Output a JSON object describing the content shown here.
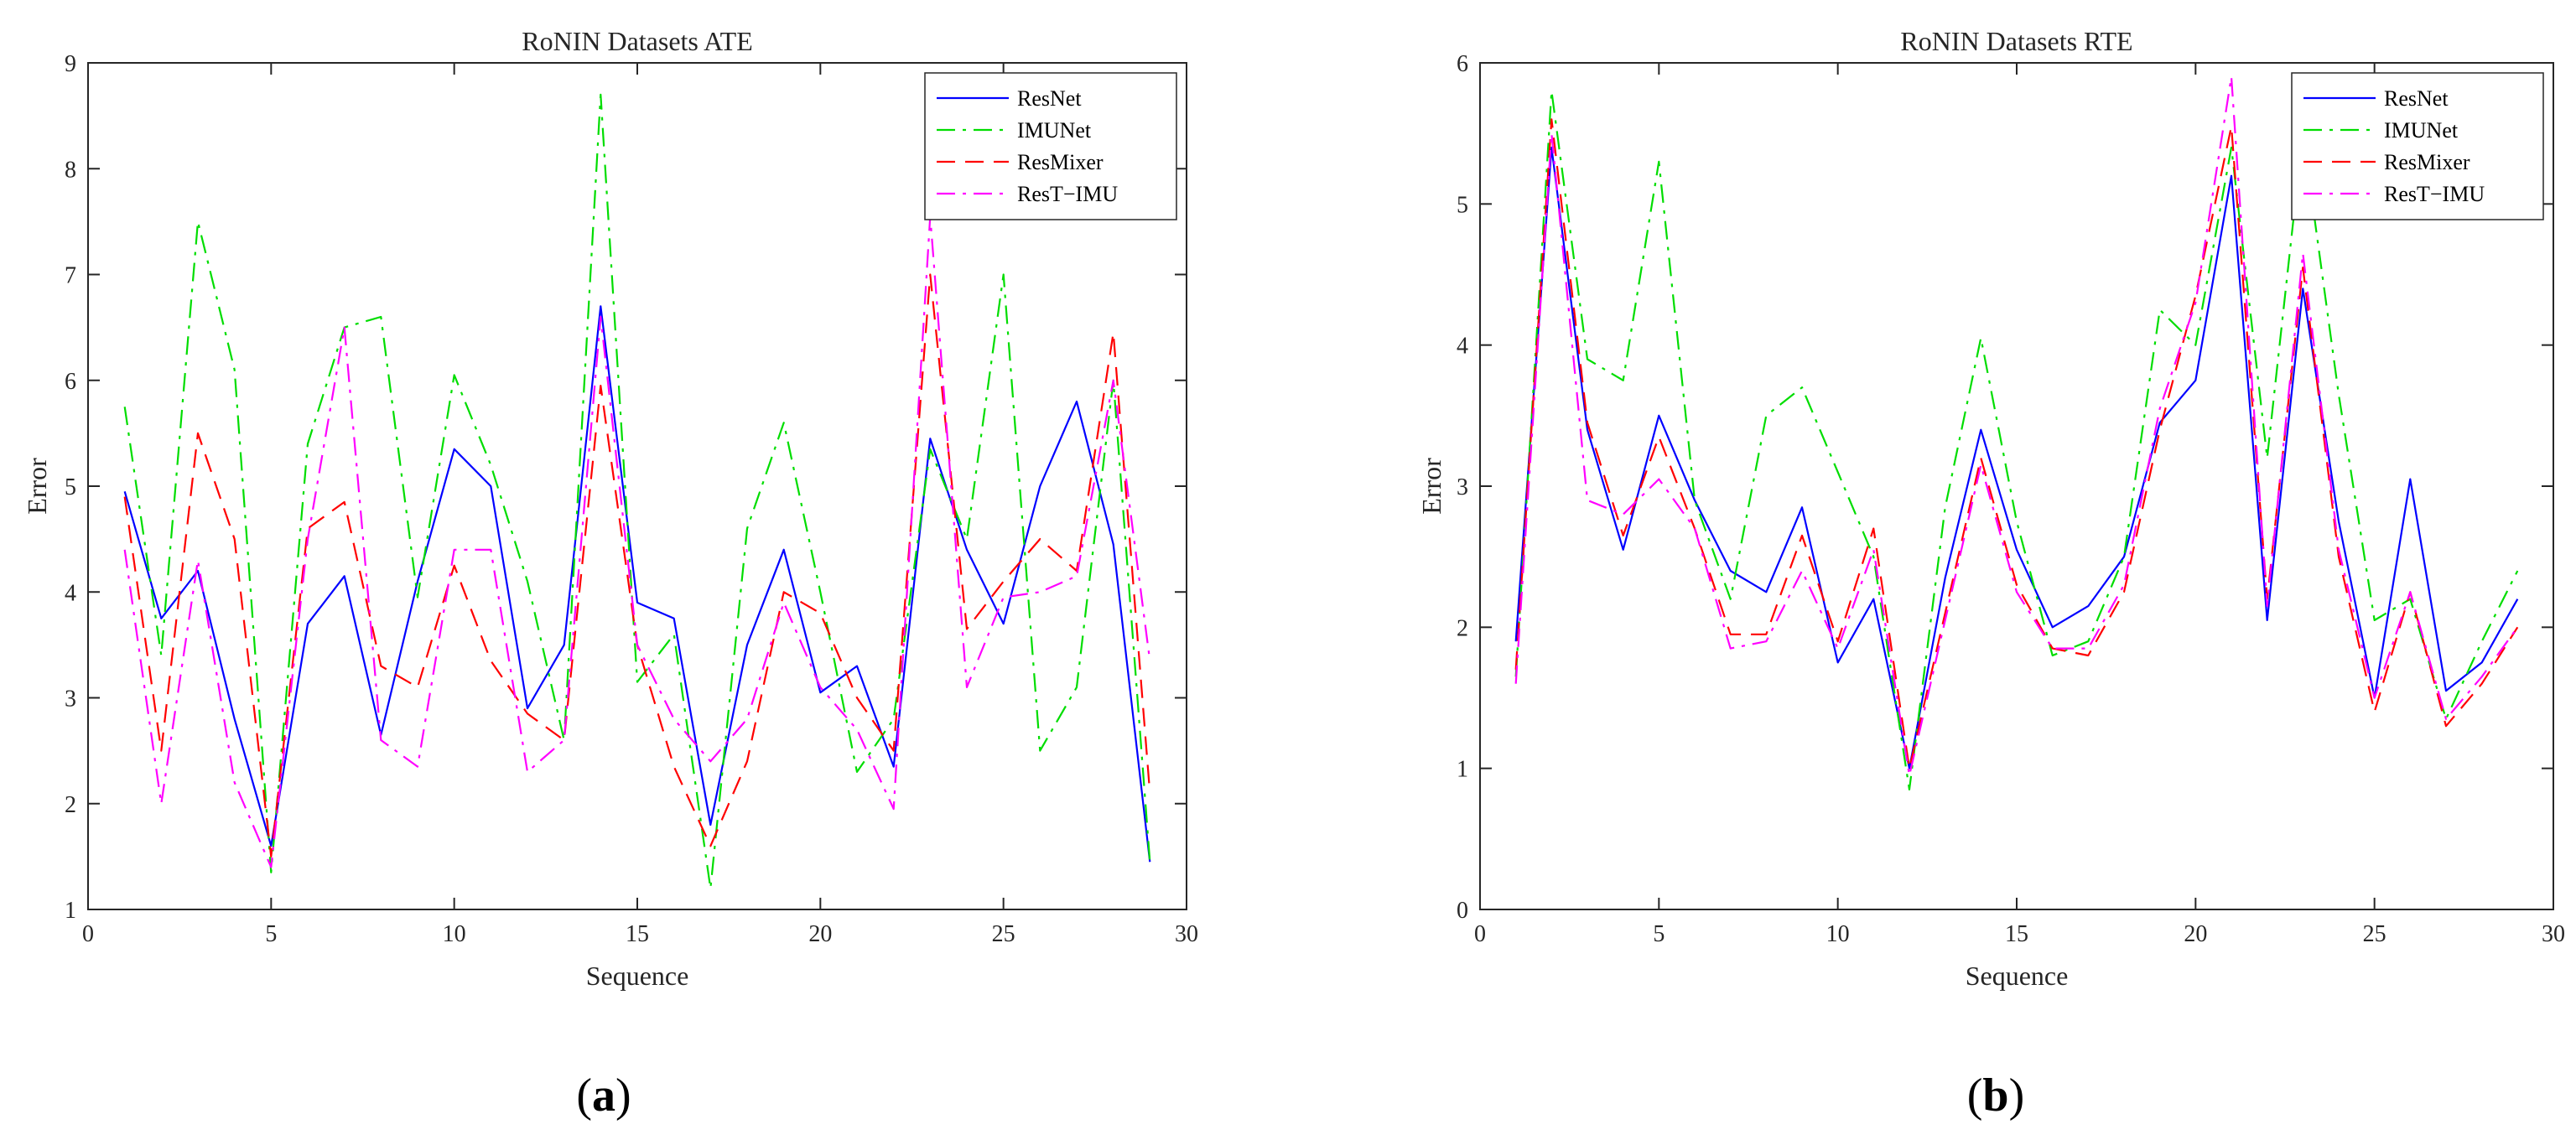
{
  "panels": [
    {
      "label_open": "(",
      "label_letter": "a",
      "label_close": ")"
    },
    {
      "label_open": "(",
      "label_letter": "b",
      "label_close": ")"
    }
  ],
  "chart_data": [
    {
      "type": "line",
      "title": "RoNIN Datasets ATE",
      "xlabel": "Sequence",
      "ylabel": "Error",
      "xlim": [
        0,
        30
      ],
      "ylim": [
        1,
        9
      ],
      "xticks": [
        0,
        5,
        10,
        15,
        20,
        25,
        30
      ],
      "yticks": [
        1,
        2,
        3,
        4,
        5,
        6,
        7,
        8,
        9
      ],
      "legend_position": "top-right",
      "grid": false,
      "x": [
        1,
        2,
        3,
        4,
        5,
        6,
        7,
        8,
        9,
        10,
        11,
        12,
        13,
        14,
        15,
        16,
        17,
        18,
        19,
        20,
        21,
        22,
        23,
        24,
        25,
        26,
        27,
        28,
        29
      ],
      "series": [
        {
          "name": "ResNet",
          "color": "#0000ff",
          "dash": "solid",
          "values": [
            4.95,
            3.75,
            4.2,
            2.8,
            1.6,
            3.7,
            4.15,
            2.65,
            4.1,
            5.35,
            5.0,
            2.9,
            3.5,
            6.7,
            3.9,
            3.75,
            1.8,
            3.5,
            4.4,
            3.05,
            3.3,
            2.35,
            5.45,
            4.4,
            3.7,
            5.0,
            5.8,
            4.45,
            1.45
          ]
        },
        {
          "name": "IMUNet",
          "color": "#00dd00",
          "dash": "dashdot",
          "values": [
            5.75,
            3.4,
            7.5,
            6.1,
            1.35,
            5.4,
            6.5,
            6.6,
            3.95,
            6.05,
            5.2,
            4.1,
            2.6,
            8.7,
            3.15,
            3.6,
            1.2,
            4.6,
            5.6,
            4.0,
            2.3,
            2.8,
            5.35,
            4.5,
            7.0,
            2.5,
            3.1,
            6.0,
            1.45
          ]
        },
        {
          "name": "ResMixer",
          "color": "#ff0000",
          "dash": "dashed",
          "values": [
            4.9,
            2.5,
            5.5,
            4.5,
            1.5,
            4.6,
            4.85,
            3.3,
            3.1,
            4.25,
            3.35,
            2.85,
            2.6,
            5.95,
            3.5,
            2.35,
            1.6,
            2.4,
            4.0,
            3.8,
            3.0,
            2.5,
            7.0,
            3.65,
            4.1,
            4.5,
            4.2,
            6.45,
            2.1
          ]
        },
        {
          "name": "ResT−IMU",
          "color": "#ff00ff",
          "dash": "dashdot",
          "values": [
            4.4,
            2.0,
            4.3,
            2.2,
            1.4,
            4.5,
            6.5,
            2.6,
            2.35,
            4.4,
            4.4,
            2.3,
            2.6,
            6.6,
            3.5,
            2.8,
            2.4,
            2.8,
            3.9,
            3.1,
            2.7,
            1.95,
            7.55,
            3.1,
            3.95,
            4.0,
            4.15,
            6.0,
            3.35
          ]
        }
      ]
    },
    {
      "type": "line",
      "title": "RoNIN Datasets RTE",
      "xlabel": "Sequence",
      "ylabel": "Error",
      "xlim": [
        0,
        30
      ],
      "ylim": [
        0,
        6
      ],
      "xticks": [
        0,
        5,
        10,
        15,
        20,
        25,
        30
      ],
      "yticks": [
        0,
        1,
        2,
        3,
        4,
        5,
        6
      ],
      "legend_position": "top-right",
      "grid": false,
      "x": [
        1,
        2,
        3,
        4,
        5,
        6,
        7,
        8,
        9,
        10,
        11,
        12,
        13,
        14,
        15,
        16,
        17,
        18,
        19,
        20,
        21,
        22,
        23,
        24,
        25,
        26,
        27,
        28,
        29
      ],
      "series": [
        {
          "name": "ResNet",
          "color": "#0000ff",
          "dash": "solid",
          "values": [
            1.9,
            5.4,
            3.4,
            2.55,
            3.5,
            2.9,
            2.4,
            2.25,
            2.85,
            1.75,
            2.2,
            1.0,
            2.35,
            3.4,
            2.55,
            2.0,
            2.15,
            2.5,
            3.45,
            3.75,
            5.2,
            2.05,
            4.4,
            2.75,
            1.5,
            3.05,
            1.55,
            1.75,
            2.2
          ]
        },
        {
          "name": "IMUNet",
          "color": "#00dd00",
          "dash": "dashdot",
          "values": [
            1.65,
            5.8,
            3.9,
            3.75,
            5.3,
            2.9,
            2.2,
            3.5,
            3.7,
            3.1,
            2.5,
            0.85,
            2.85,
            4.05,
            2.75,
            1.8,
            1.9,
            2.5,
            4.25,
            4.0,
            5.4,
            3.2,
            5.5,
            3.65,
            2.05,
            2.2,
            1.35,
            1.9,
            2.4
          ]
        },
        {
          "name": "ResMixer",
          "color": "#ff0000",
          "dash": "dashed",
          "values": [
            1.7,
            5.6,
            3.45,
            2.65,
            3.35,
            2.7,
            1.95,
            1.95,
            2.65,
            1.9,
            2.7,
            1.0,
            2.1,
            3.2,
            2.3,
            1.85,
            1.8,
            2.25,
            3.4,
            4.35,
            5.55,
            2.2,
            4.55,
            2.5,
            1.4,
            2.25,
            1.3,
            1.6,
            2.0
          ]
        },
        {
          "name": "ResT−IMU",
          "color": "#ff00ff",
          "dash": "dashdot",
          "values": [
            1.6,
            5.5,
            2.9,
            2.8,
            3.05,
            2.7,
            1.85,
            1.9,
            2.4,
            1.85,
            2.55,
            0.95,
            2.05,
            3.15,
            2.25,
            1.85,
            1.85,
            2.3,
            3.55,
            4.3,
            5.9,
            2.15,
            4.65,
            2.55,
            1.5,
            2.25,
            1.35,
            1.65,
            2.0
          ]
        }
      ]
    }
  ]
}
